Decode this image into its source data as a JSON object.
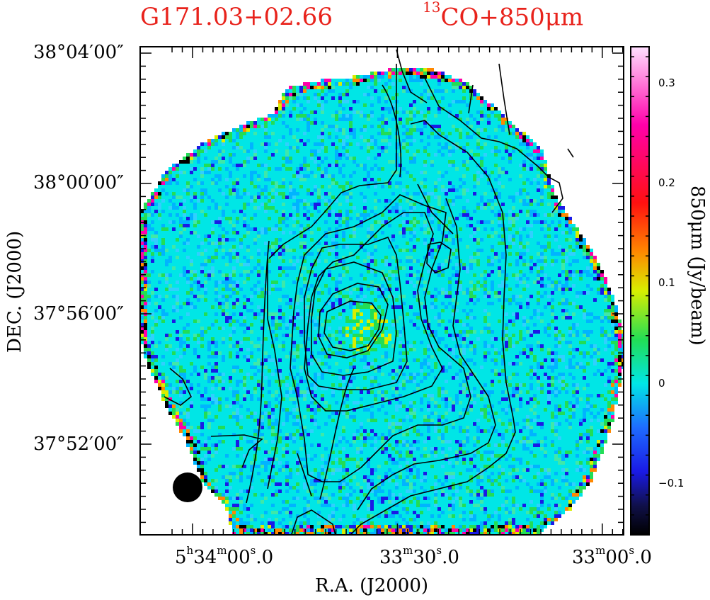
{
  "title_left": "G171.03+02.66",
  "title_right_sup": "13",
  "title_right": "CO+850μm",
  "chart_data": {
    "type": "heatmap",
    "xlabel": "R.A. (J2000)",
    "ylabel": "DEC. (J2000)",
    "colorbar_label": "850μm (Jy/beam)",
    "x_ticks": [
      {
        "h": "5",
        "h_unit": "h",
        "m": "34",
        "m_unit": "m",
        "s": "00",
        "s_unit": "s",
        "frac": ".0"
      },
      {
        "h": "",
        "h_unit": "",
        "m": "33",
        "m_unit": "m",
        "s": "30",
        "s_unit": "s",
        "frac": ".0"
      },
      {
        "h": "",
        "h_unit": "",
        "m": "33",
        "m_unit": "m",
        "s": "00",
        "s_unit": "s",
        "frac": ".0"
      }
    ],
    "y_ticks": [
      "38°04′00″",
      "38°00′00″",
      "37°56′00″",
      "37°52′00″"
    ],
    "colorbar_ticks": [
      "0.3",
      "0.2",
      "0.1",
      "0",
      "−0.1"
    ],
    "colorbar_range": [
      -0.15,
      0.34
    ],
    "colormap": [
      "#000000",
      "#1a1ae6",
      "#00b4ff",
      "#00e6e6",
      "#22dd55",
      "#d8ee00",
      "#ff8800",
      "#ff1010",
      "#ff00aa",
      "#ffd8ff"
    ],
    "contours": "13CO integrated intensity (black lines)",
    "beam": "filled black circle, lower-left"
  }
}
